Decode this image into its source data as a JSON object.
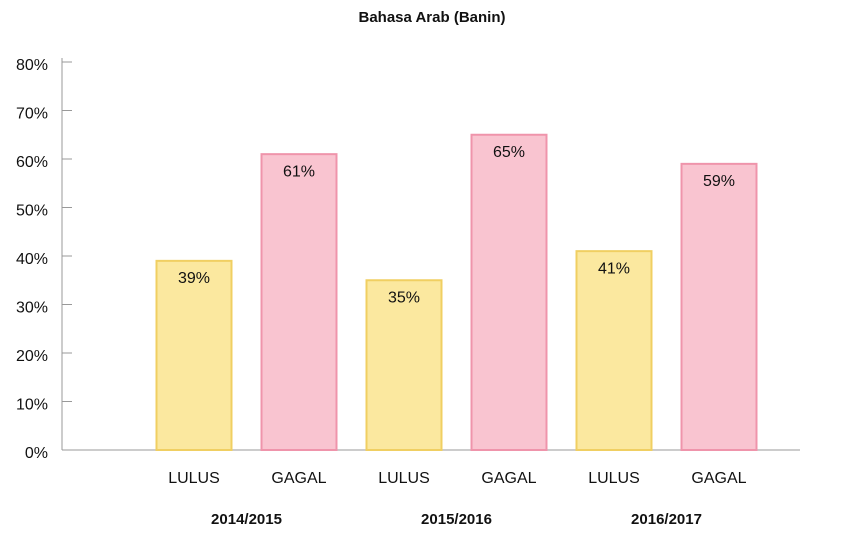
{
  "chart_data": {
    "type": "bar",
    "title": "Bahasa Arab (Banin)",
    "categories": [
      "LULUS",
      "GAGAL",
      "LULUS",
      "GAGAL",
      "LULUS",
      "GAGAL"
    ],
    "groups": [
      "2014/2015",
      "2015/2016",
      "2016/2017"
    ],
    "values": [
      39,
      61,
      35,
      65,
      41,
      59
    ],
    "value_labels": [
      "39%",
      "61%",
      "35%",
      "65%",
      "41%",
      "59%"
    ],
    "colors": [
      "#fbe89f",
      "#f9c4d0",
      "#fbe89f",
      "#f9c4d0",
      "#fbe89f",
      "#f9c4d0"
    ],
    "edge_colors": [
      "#f0cf62",
      "#ef94ab",
      "#f0cf62",
      "#ef94ab",
      "#f0cf62",
      "#ef94ab"
    ],
    "ylim": [
      0,
      80
    ],
    "yticks": [
      {
        "value": 0,
        "label": "0%"
      },
      {
        "value": 10,
        "label": "10%"
      },
      {
        "value": 20,
        "label": "20%"
      },
      {
        "value": 30,
        "label": "30%"
      },
      {
        "value": 40,
        "label": "40%"
      },
      {
        "value": 50,
        "label": "50%"
      },
      {
        "value": 60,
        "label": "60%"
      },
      {
        "value": 70,
        "label": "70%"
      },
      {
        "value": 80,
        "label": "80%"
      }
    ]
  }
}
